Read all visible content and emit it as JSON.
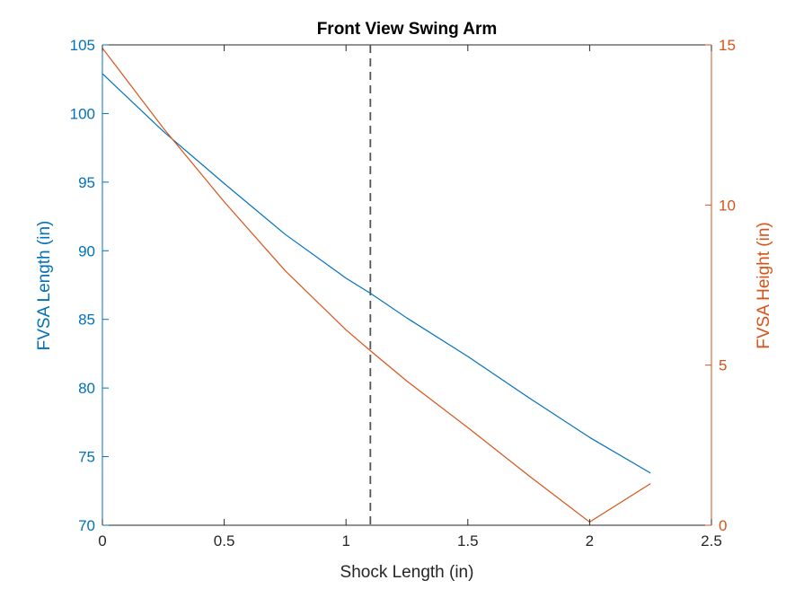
{
  "chart_data": {
    "type": "line",
    "title": "Front View Swing Arm",
    "xlabel": "Shock Length (in)",
    "ylabel_left": "FVSA Length (in)",
    "ylabel_right": "FVSA Height (in)",
    "xlim": [
      0,
      2.5
    ],
    "ylim_left": [
      70,
      105
    ],
    "ylim_right": [
      0,
      15
    ],
    "x_ticks": [
      0,
      0.5,
      1,
      1.5,
      2,
      2.5
    ],
    "x_tick_labels": [
      "0",
      "0.5",
      "1",
      "1.5",
      "2",
      "2.5"
    ],
    "y_left_ticks": [
      70,
      75,
      80,
      85,
      90,
      95,
      100,
      105
    ],
    "y_left_tick_labels": [
      "70",
      "75",
      "80",
      "85",
      "90",
      "95",
      "100",
      "105"
    ],
    "y_right_ticks": [
      0,
      5,
      10,
      15
    ],
    "y_right_tick_labels": [
      "0",
      "5",
      "10",
      "15"
    ],
    "grid": false,
    "reference_line": {
      "x": 1.1,
      "style": "dashed",
      "color": "#555555"
    },
    "colors": {
      "left": "#0072BD",
      "right": "#D95319"
    },
    "series": [
      {
        "axis": "left",
        "color": "#0072BD",
        "x": [
          0,
          0.25,
          0.5,
          0.75,
          1.0,
          1.1,
          1.25,
          1.5,
          1.75,
          2.0,
          2.25
        ],
        "y": [
          102.9,
          98.7,
          94.9,
          91.2,
          88.0,
          86.9,
          85.1,
          82.3,
          79.3,
          76.4,
          73.8
        ]
      },
      {
        "axis": "right",
        "color": "#D95319",
        "x": [
          0,
          0.25,
          0.5,
          0.75,
          1.0,
          1.1,
          1.25,
          1.5,
          1.75,
          2.0,
          2.25
        ],
        "y": [
          14.9,
          12.4,
          10.1,
          7.95,
          6.1,
          5.45,
          4.5,
          3.05,
          1.55,
          0.1,
          1.3
        ]
      }
    ]
  }
}
